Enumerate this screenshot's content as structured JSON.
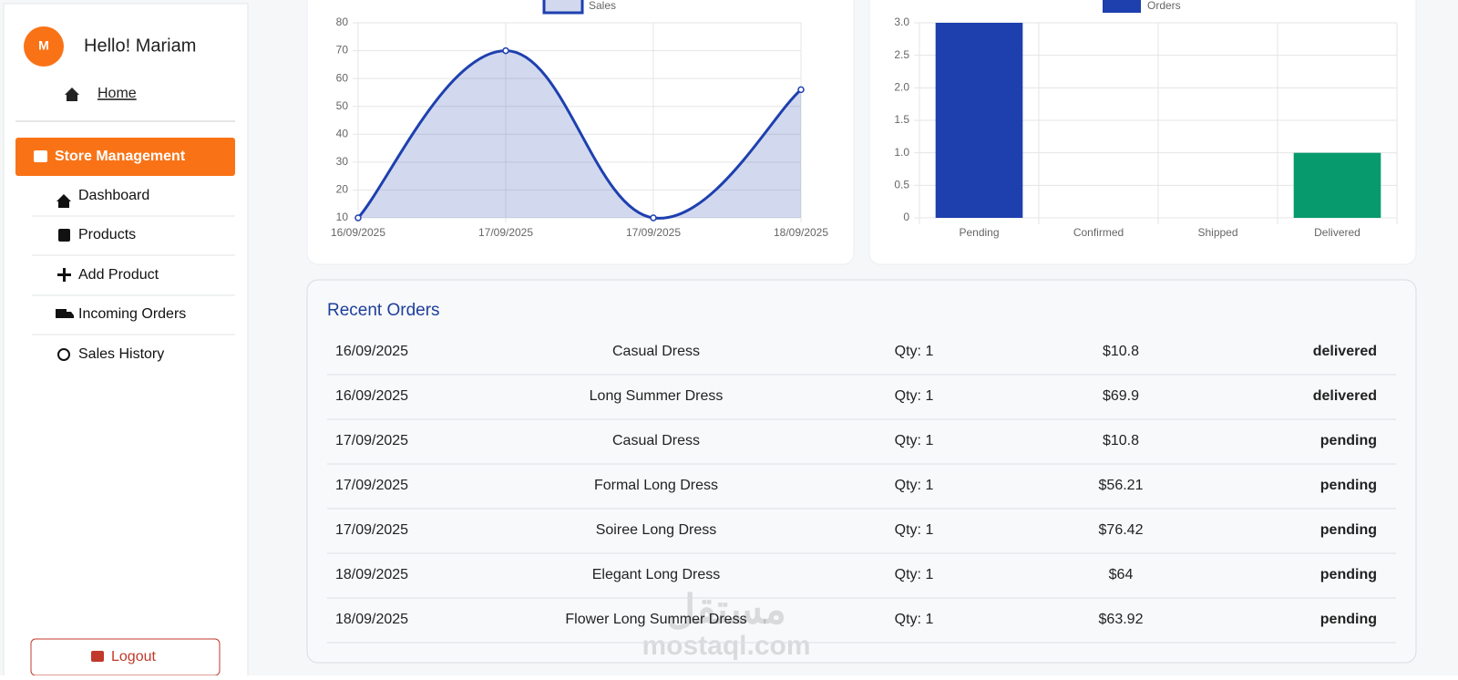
{
  "sidebar": {
    "avatar": "M",
    "greeting": "Hello! Mariam",
    "home": "Home",
    "section": "Store Management",
    "menu": [
      "Dashboard",
      "Products",
      "Add Product",
      "Incoming Orders",
      "Sales History"
    ],
    "logout": "Logout"
  },
  "chart_data": [
    {
      "type": "line",
      "categories": [
        "16/09/2025",
        "17/09/2025",
        "17/09/2025",
        "18/09/2025"
      ],
      "series": [
        {
          "name": "Sales",
          "color": "#1e40af",
          "fill": "rgba(30,64,175,0.2)",
          "values": [
            10,
            70,
            10,
            56
          ]
        }
      ],
      "ylim": [
        10,
        80
      ],
      "yticks": [
        10,
        20,
        30,
        40,
        50,
        60,
        70,
        80
      ],
      "grid": true
    },
    {
      "type": "bar",
      "categories": [
        "Pending",
        "Confirmed",
        "Shipped",
        "Delivered"
      ],
      "series": [
        {
          "name": "Orders",
          "color": "#1e3fae",
          "colors": [
            "#1e3fae",
            "#1e3fae",
            "#1e3fae",
            "#079a6c"
          ],
          "values": [
            3,
            0,
            0,
            1
          ]
        }
      ],
      "ylim": [
        0,
        3
      ],
      "yticks": [
        0,
        0.5,
        {
          "value": 1,
          "label": "1.0"
        },
        1.5,
        {
          "value": 2,
          "label": "2.0"
        },
        2.5,
        {
          "value": 3,
          "label": "3.0"
        }
      ],
      "grid": true
    }
  ],
  "recent_orders": {
    "title": "Recent Orders",
    "rows": [
      [
        "16/09/2025",
        "Casual Dress",
        "Qty: 1",
        "$10.8",
        "delivered"
      ],
      [
        "16/09/2025",
        "Long Summer Dress",
        "Qty: 1",
        "$69.9",
        "delivered"
      ],
      [
        "17/09/2025",
        "Casual Dress",
        "Qty: 1",
        "$10.8",
        "pending"
      ],
      [
        "17/09/2025",
        "Formal Long Dress",
        "Qty: 1",
        "$56.21",
        "pending"
      ],
      [
        "17/09/2025",
        "Soiree Long Dress",
        "Qty: 1",
        "$76.42",
        "pending"
      ],
      [
        "18/09/2025",
        "Elegant Long Dress",
        "Qty: 1",
        "$64",
        "pending"
      ],
      [
        "18/09/2025",
        "Flower Long Summer Dress",
        "Qty: 1",
        "$63.92",
        "pending"
      ]
    ]
  },
  "watermark": [
    "مستقل",
    "mostaql.com"
  ]
}
